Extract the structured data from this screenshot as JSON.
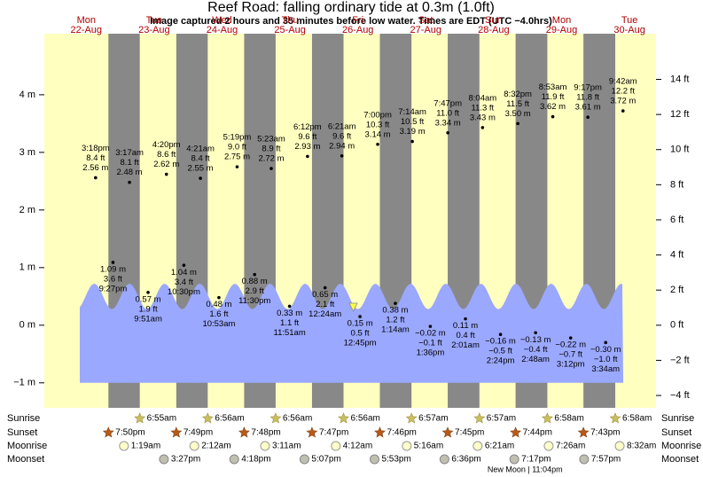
{
  "chart_data": {
    "type": "tide",
    "title": "Reef Road: falling  ordinary tide at 0.3m (1.0ft)",
    "subtitle": "Image captured 2 hours and 35 minutes before low water. Times are EDT (UTC −4.0hrs)",
    "ylim": [
      -1.28,
      5.06
    ],
    "yticks": [
      {
        "value": -1,
        "label": "−1 m"
      },
      {
        "value": 0,
        "label": "0 m"
      },
      {
        "value": 1,
        "label": "1 m"
      },
      {
        "value": 2,
        "label": "2 m"
      },
      {
        "value": 3,
        "label": "3 m"
      },
      {
        "value": 4,
        "label": "4 m"
      }
    ],
    "y2lim": [
      -4.2,
      16.6
    ],
    "y2ticks": [
      {
        "value": -4,
        "label": "−4 ft"
      },
      {
        "value": -2,
        "label": "−2 ft"
      },
      {
        "value": 0,
        "label": "0 ft"
      },
      {
        "value": 2,
        "label": "2 ft"
      },
      {
        "value": 4,
        "label": "4 ft"
      },
      {
        "value": 6,
        "label": "6 ft"
      },
      {
        "value": 8,
        "label": "8 ft"
      },
      {
        "value": 10,
        "label": "10 ft"
      },
      {
        "value": 12,
        "label": "12 ft"
      },
      {
        "value": 14,
        "label": "14 ft"
      }
    ],
    "row_labels": [
      "Sunrise",
      "Sunset",
      "Moonrise",
      "Moonset"
    ],
    "days": [
      {
        "day": "Mon",
        "date": "22-Aug",
        "sunset": "7:50pm",
        "high": [
          {
            "time": "3:18pm",
            "height": 2.56,
            "height_label": "2.56 m",
            "feet_label": "8.4 ft"
          }
        ],
        "low": [
          {
            "time": "9:27pm",
            "height": 1.09,
            "height_label": "1.09 m",
            "feet_label": "3.6 ft"
          }
        ]
      },
      {
        "day": "Tue",
        "date": "23-Aug",
        "sunrise": "6:55am",
        "sunset": "7:49pm",
        "moonrise": "1:19am",
        "moonset": "3:27pm",
        "high": [
          {
            "time": "3:17am",
            "height": 2.48,
            "height_label": "2.48 m",
            "feet_label": "8.1 ft"
          },
          {
            "time": "4:20pm",
            "height": 2.62,
            "height_label": "2.62 m",
            "feet_label": "8.6 ft"
          }
        ],
        "low": [
          {
            "time": "9:51am",
            "height": 0.57,
            "height_label": "0.57 m",
            "feet_label": "1.9 ft"
          },
          {
            "time": "10:30pm",
            "height": 1.04,
            "height_label": "1.04 m",
            "feet_label": "3.4 ft"
          }
        ]
      },
      {
        "day": "Wed",
        "date": "24-Aug",
        "sunrise": "6:56am",
        "sunset": "7:48pm",
        "moonrise": "2:12am",
        "moonset": "4:18pm",
        "high": [
          {
            "time": "4:21am",
            "height": 2.55,
            "height_label": "2.55 m",
            "feet_label": "8.4 ft"
          },
          {
            "time": "5:19pm",
            "height": 2.75,
            "height_label": "2.75 m",
            "feet_label": "9.0 ft"
          }
        ],
        "low": [
          {
            "time": "10:53am",
            "height": 0.48,
            "height_label": "0.48 m",
            "feet_label": "1.6 ft"
          },
          {
            "time": "11:30pm",
            "height": 0.88,
            "height_label": "0.88 m",
            "feet_label": "2.9 ft"
          }
        ]
      },
      {
        "day": "Thu",
        "date": "25-Aug",
        "sunrise": "6:56am",
        "sunset": "7:47pm",
        "moonrise": "3:11am",
        "moonset": "5:07pm",
        "high": [
          {
            "time": "5:23am",
            "height": 2.72,
            "height_label": "2.72 m",
            "feet_label": "8.9 ft"
          },
          {
            "time": "6:12pm",
            "height": 2.93,
            "height_label": "2.93 m",
            "feet_label": "9.6 ft"
          }
        ],
        "low": [
          {
            "time": "11:51am",
            "height": 0.33,
            "height_label": "0.33 m",
            "feet_label": "1.1 ft"
          }
        ]
      },
      {
        "day": "Fri",
        "date": "26-Aug",
        "sunrise": "6:56am",
        "sunset": "7:46pm",
        "moonrise": "4:12am",
        "moonset": "5:53pm",
        "high": [
          {
            "time": "6:21am",
            "height": 2.94,
            "height_label": "2.94 m",
            "feet_label": "9.6 ft"
          },
          {
            "time": "7:00pm",
            "height": 3.14,
            "height_label": "3.14 m",
            "feet_label": "10.3 ft"
          }
        ],
        "low": [
          {
            "time": "12:24am",
            "height": 0.65,
            "height_label": "0.65 m",
            "feet_label": "2.1 ft"
          },
          {
            "time": "12:45pm",
            "height": 0.15,
            "height_label": "0.15 m",
            "feet_label": "0.5 ft"
          }
        ]
      },
      {
        "day": "Sat",
        "date": "27-Aug",
        "sunrise": "6:57am",
        "sunset": "7:45pm",
        "moonrise": "5:16am",
        "moonset": "6:36pm",
        "high": [
          {
            "time": "7:14am",
            "height": 3.19,
            "height_label": "3.19 m",
            "feet_label": "10.5 ft"
          },
          {
            "time": "7:47pm",
            "height": 3.34,
            "height_label": "3.34 m",
            "feet_label": "11.0 ft"
          }
        ],
        "low": [
          {
            "time": "1:14am",
            "height": 0.38,
            "height_label": "0.38 m",
            "feet_label": "1.2 ft"
          },
          {
            "time": "1:36pm",
            "height": -0.02,
            "height_label": "−0.02 m",
            "feet_label": "−0.1 ft"
          }
        ]
      },
      {
        "day": "Sun",
        "date": "28-Aug",
        "sunrise": "6:57am",
        "sunset": "7:44pm",
        "moonrise": "6:21am",
        "moonset": "7:17pm",
        "moon_phase": "New Moon | 11:04pm",
        "high": [
          {
            "time": "8:04am",
            "height": 3.43,
            "height_label": "3.43 m",
            "feet_label": "11.3 ft"
          },
          {
            "time": "8:32pm",
            "height": 3.5,
            "height_label": "3.50 m",
            "feet_label": "11.5 ft"
          }
        ],
        "low": [
          {
            "time": "2:01am",
            "height": 0.11,
            "height_label": "0.11 m",
            "feet_label": "0.4 ft"
          },
          {
            "time": "2:24pm",
            "height": -0.16,
            "height_label": "−0.16 m",
            "feet_label": "−0.5 ft"
          }
        ]
      },
      {
        "day": "Mon",
        "date": "29-Aug",
        "sunrise": "6:58am",
        "sunset": "7:43pm",
        "moonrise": "7:26am",
        "moonset": "7:57pm",
        "high": [
          {
            "time": "8:53am",
            "height": 3.62,
            "height_label": "3.62 m",
            "feet_label": "11.9 ft"
          },
          {
            "time": "9:17pm",
            "height": 3.61,
            "height_label": "3.61 m",
            "feet_label": "11.8 ft"
          }
        ],
        "low": [
          {
            "time": "2:48am",
            "height": -0.13,
            "height_label": "−0.13 m",
            "feet_label": "−0.4 ft"
          },
          {
            "time": "3:12pm",
            "height": -0.22,
            "height_label": "−0.22 m",
            "feet_label": "−0.7 ft"
          }
        ]
      },
      {
        "day": "Tue",
        "date": "30-Aug",
        "sunrise": "6:58am",
        "moonrise": "8:32am",
        "high": [
          {
            "time": "9:42am",
            "height": 3.72,
            "height_label": "3.72 m",
            "feet_label": "12.2 ft"
          }
        ],
        "low": [
          {
            "time": "3:34am",
            "height": -0.3,
            "height_label": "−0.30 m",
            "feet_label": "−1.0 ft"
          }
        ]
      }
    ]
  }
}
